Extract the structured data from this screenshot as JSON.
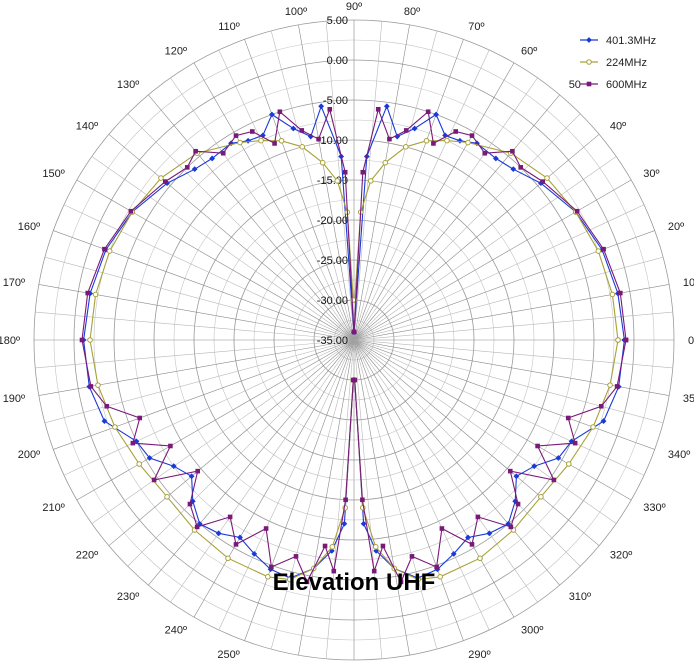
{
  "chart_data": {
    "type": "polar-line",
    "title": "Elevation UHF",
    "radial_axis": {
      "ticks": [
        "5.00",
        "0.00",
        "-5.00",
        "-10.00",
        "-15.00",
        "-20.00",
        "-25.00",
        "-30.00",
        "-35.00"
      ],
      "range": [
        -35,
        5
      ],
      "unit": "dB"
    },
    "angular_axis": {
      "labels": [
        "0º",
        "10º",
        "20º",
        "30º",
        "40º",
        "50",
        "60º",
        "70º",
        "80º",
        "90º",
        "100º",
        "110º",
        "120º",
        "130º",
        "140º",
        "150º",
        "160º",
        "170º",
        "180º",
        "190º",
        "200º",
        "210º",
        "220º",
        "230º",
        "240º",
        "250º",
        "260º",
        "270º",
        "280º",
        "290º",
        "300º",
        "310º",
        "320º",
        "330º",
        "340º",
        "350º"
      ],
      "step_deg": 10,
      "zero_at": "right",
      "direction": "counterclockwise",
      "minor_spokes_deg": 5
    },
    "grid": true,
    "legend_position": "top-right",
    "series": [
      {
        "name": "401.3MHz",
        "color": "#1a3ad8",
        "marker": "diamond",
        "points": [
          [
            0,
            -1.2
          ],
          [
            10,
            -1.5
          ],
          [
            20,
            -2.0
          ],
          [
            30,
            -3.0
          ],
          [
            40,
            -4.5
          ],
          [
            47,
            -5.8
          ],
          [
            52,
            -6.2
          ],
          [
            58,
            -6.0
          ],
          [
            62,
            -6.8
          ],
          [
            66,
            -7.0
          ],
          [
            70,
            -5.0
          ],
          [
            74,
            -7.5
          ],
          [
            78,
            -9.0
          ],
          [
            82,
            -5.5
          ],
          [
            86,
            -12.0
          ],
          [
            89,
            -34.0
          ],
          [
            91,
            -34.0
          ],
          [
            94,
            -12.0
          ],
          [
            98,
            -5.5
          ],
          [
            102,
            -9.0
          ],
          [
            106,
            -7.5
          ],
          [
            110,
            -5.0
          ],
          [
            114,
            -7.0
          ],
          [
            118,
            -6.8
          ],
          [
            122,
            -6.0
          ],
          [
            128,
            -6.2
          ],
          [
            133,
            -5.8
          ],
          [
            140,
            -4.5
          ],
          [
            150,
            -3.0
          ],
          [
            160,
            -2.0
          ],
          [
            170,
            -1.5
          ],
          [
            180,
            -1.2
          ],
          [
            190,
            -1.4
          ],
          [
            198,
            -2.2
          ],
          [
            205,
            -5.0
          ],
          [
            210,
            -5.5
          ],
          [
            215,
            -7.5
          ],
          [
            220,
            -8.5
          ],
          [
            225,
            -6.5
          ],
          [
            230,
            -5.0
          ],
          [
            235,
            -5.5
          ],
          [
            240,
            -6.5
          ],
          [
            245,
            -5.5
          ],
          [
            250,
            -4.5
          ],
          [
            255,
            -4.2
          ],
          [
            260,
            -6.0
          ],
          [
            264,
            -8.5
          ],
          [
            267,
            -12.0
          ],
          [
            269,
            -30.0
          ],
          [
            271,
            -30.0
          ],
          [
            273,
            -12.0
          ],
          [
            276,
            -8.5
          ],
          [
            280,
            -6.0
          ],
          [
            285,
            -4.2
          ],
          [
            290,
            -4.5
          ],
          [
            295,
            -5.5
          ],
          [
            300,
            -6.5
          ],
          [
            305,
            -5.5
          ],
          [
            310,
            -5.0
          ],
          [
            315,
            -6.5
          ],
          [
            320,
            -8.5
          ],
          [
            325,
            -7.5
          ],
          [
            330,
            -5.5
          ],
          [
            335,
            -5.0
          ],
          [
            342,
            -2.2
          ],
          [
            350,
            -1.4
          ],
          [
            360,
            -1.2
          ]
        ]
      },
      {
        "name": "224MHz",
        "color": "#a8a23a",
        "marker": "circle",
        "points": [
          [
            0,
            -2.0
          ],
          [
            10,
            -2.2
          ],
          [
            20,
            -2.5
          ],
          [
            30,
            -3.0
          ],
          [
            40,
            -3.5
          ],
          [
            50,
            -4.5
          ],
          [
            60,
            -6.5
          ],
          [
            65,
            -7.5
          ],
          [
            70,
            -8.5
          ],
          [
            75,
            -10.0
          ],
          [
            80,
            -12.5
          ],
          [
            84,
            -15.0
          ],
          [
            87,
            -19.0
          ],
          [
            89,
            -30.0
          ],
          [
            91,
            -30.0
          ],
          [
            93,
            -19.0
          ],
          [
            96,
            -15.0
          ],
          [
            100,
            -12.5
          ],
          [
            105,
            -10.0
          ],
          [
            110,
            -8.5
          ],
          [
            115,
            -7.5
          ],
          [
            120,
            -6.5
          ],
          [
            130,
            -4.5
          ],
          [
            140,
            -3.5
          ],
          [
            150,
            -3.0
          ],
          [
            160,
            -2.5
          ],
          [
            170,
            -2.2
          ],
          [
            180,
            -2.0
          ],
          [
            190,
            -2.5
          ],
          [
            200,
            -3.2
          ],
          [
            210,
            -4.0
          ],
          [
            220,
            -4.5
          ],
          [
            230,
            -4.0
          ],
          [
            240,
            -3.5
          ],
          [
            250,
            -3.5
          ],
          [
            255,
            -4.0
          ],
          [
            260,
            -6.0
          ],
          [
            264,
            -9.0
          ],
          [
            267,
            -14.0
          ],
          [
            269,
            -30.0
          ],
          [
            271,
            -30.0
          ],
          [
            273,
            -14.0
          ],
          [
            276,
            -9.0
          ],
          [
            280,
            -6.0
          ],
          [
            285,
            -4.0
          ],
          [
            290,
            -3.5
          ],
          [
            300,
            -3.5
          ],
          [
            310,
            -4.0
          ],
          [
            320,
            -4.5
          ],
          [
            330,
            -4.0
          ],
          [
            340,
            -3.2
          ],
          [
            350,
            -2.5
          ],
          [
            360,
            -2.0
          ]
        ]
      },
      {
        "name": "600MHz",
        "color": "#7a1a78",
        "marker": "square",
        "points": [
          [
            0,
            -1.0
          ],
          [
            10,
            -1.2
          ],
          [
            20,
            -1.8
          ],
          [
            30,
            -2.8
          ],
          [
            40,
            -4.2
          ],
          [
            46,
            -5.0
          ],
          [
            50,
            -4.2
          ],
          [
            55,
            -6.5
          ],
          [
            60,
            -5.5
          ],
          [
            64,
            -6.0
          ],
          [
            68,
            -8.5
          ],
          [
            72,
            -5.0
          ],
          [
            76,
            -8.0
          ],
          [
            80,
            -9.5
          ],
          [
            84,
            -6.0
          ],
          [
            87,
            -14.0
          ],
          [
            89,
            -34.0
          ],
          [
            91,
            -34.0
          ],
          [
            93,
            -14.0
          ],
          [
            96,
            -6.0
          ],
          [
            100,
            -9.5
          ],
          [
            104,
            -8.0
          ],
          [
            108,
            -5.0
          ],
          [
            112,
            -8.5
          ],
          [
            116,
            -6.0
          ],
          [
            120,
            -5.5
          ],
          [
            125,
            -6.5
          ],
          [
            130,
            -4.2
          ],
          [
            134,
            -5.0
          ],
          [
            140,
            -4.2
          ],
          [
            150,
            -2.8
          ],
          [
            160,
            -1.8
          ],
          [
            170,
            -1.2
          ],
          [
            180,
            -1.0
          ],
          [
            190,
            -1.6
          ],
          [
            195,
            -3.0
          ],
          [
            200,
            -6.5
          ],
          [
            205,
            -4.5
          ],
          [
            210,
            -8.5
          ],
          [
            215,
            -4.5
          ],
          [
            220,
            -9.5
          ],
          [
            225,
            -6.0
          ],
          [
            230,
            -4.5
          ],
          [
            235,
            -8.0
          ],
          [
            240,
            -5.5
          ],
          [
            245,
            -9.0
          ],
          [
            250,
            -4.8
          ],
          [
            255,
            -7.0
          ],
          [
            259,
            -4.2
          ],
          [
            262,
            -9.0
          ],
          [
            265,
            -6.0
          ],
          [
            267,
            -15.0
          ],
          [
            269,
            -30.0
          ],
          [
            271,
            -30.0
          ],
          [
            273,
            -15.0
          ],
          [
            275,
            -6.0
          ],
          [
            278,
            -9.0
          ],
          [
            281,
            -4.2
          ],
          [
            285,
            -7.0
          ],
          [
            290,
            -4.8
          ],
          [
            295,
            -9.0
          ],
          [
            300,
            -5.5
          ],
          [
            305,
            -8.0
          ],
          [
            310,
            -4.5
          ],
          [
            315,
            -6.0
          ],
          [
            320,
            -9.5
          ],
          [
            325,
            -4.5
          ],
          [
            330,
            -8.5
          ],
          [
            335,
            -4.5
          ],
          [
            340,
            -6.5
          ],
          [
            345,
            -3.0
          ],
          [
            350,
            -1.6
          ],
          [
            360,
            -1.0
          ]
        ]
      }
    ]
  }
}
